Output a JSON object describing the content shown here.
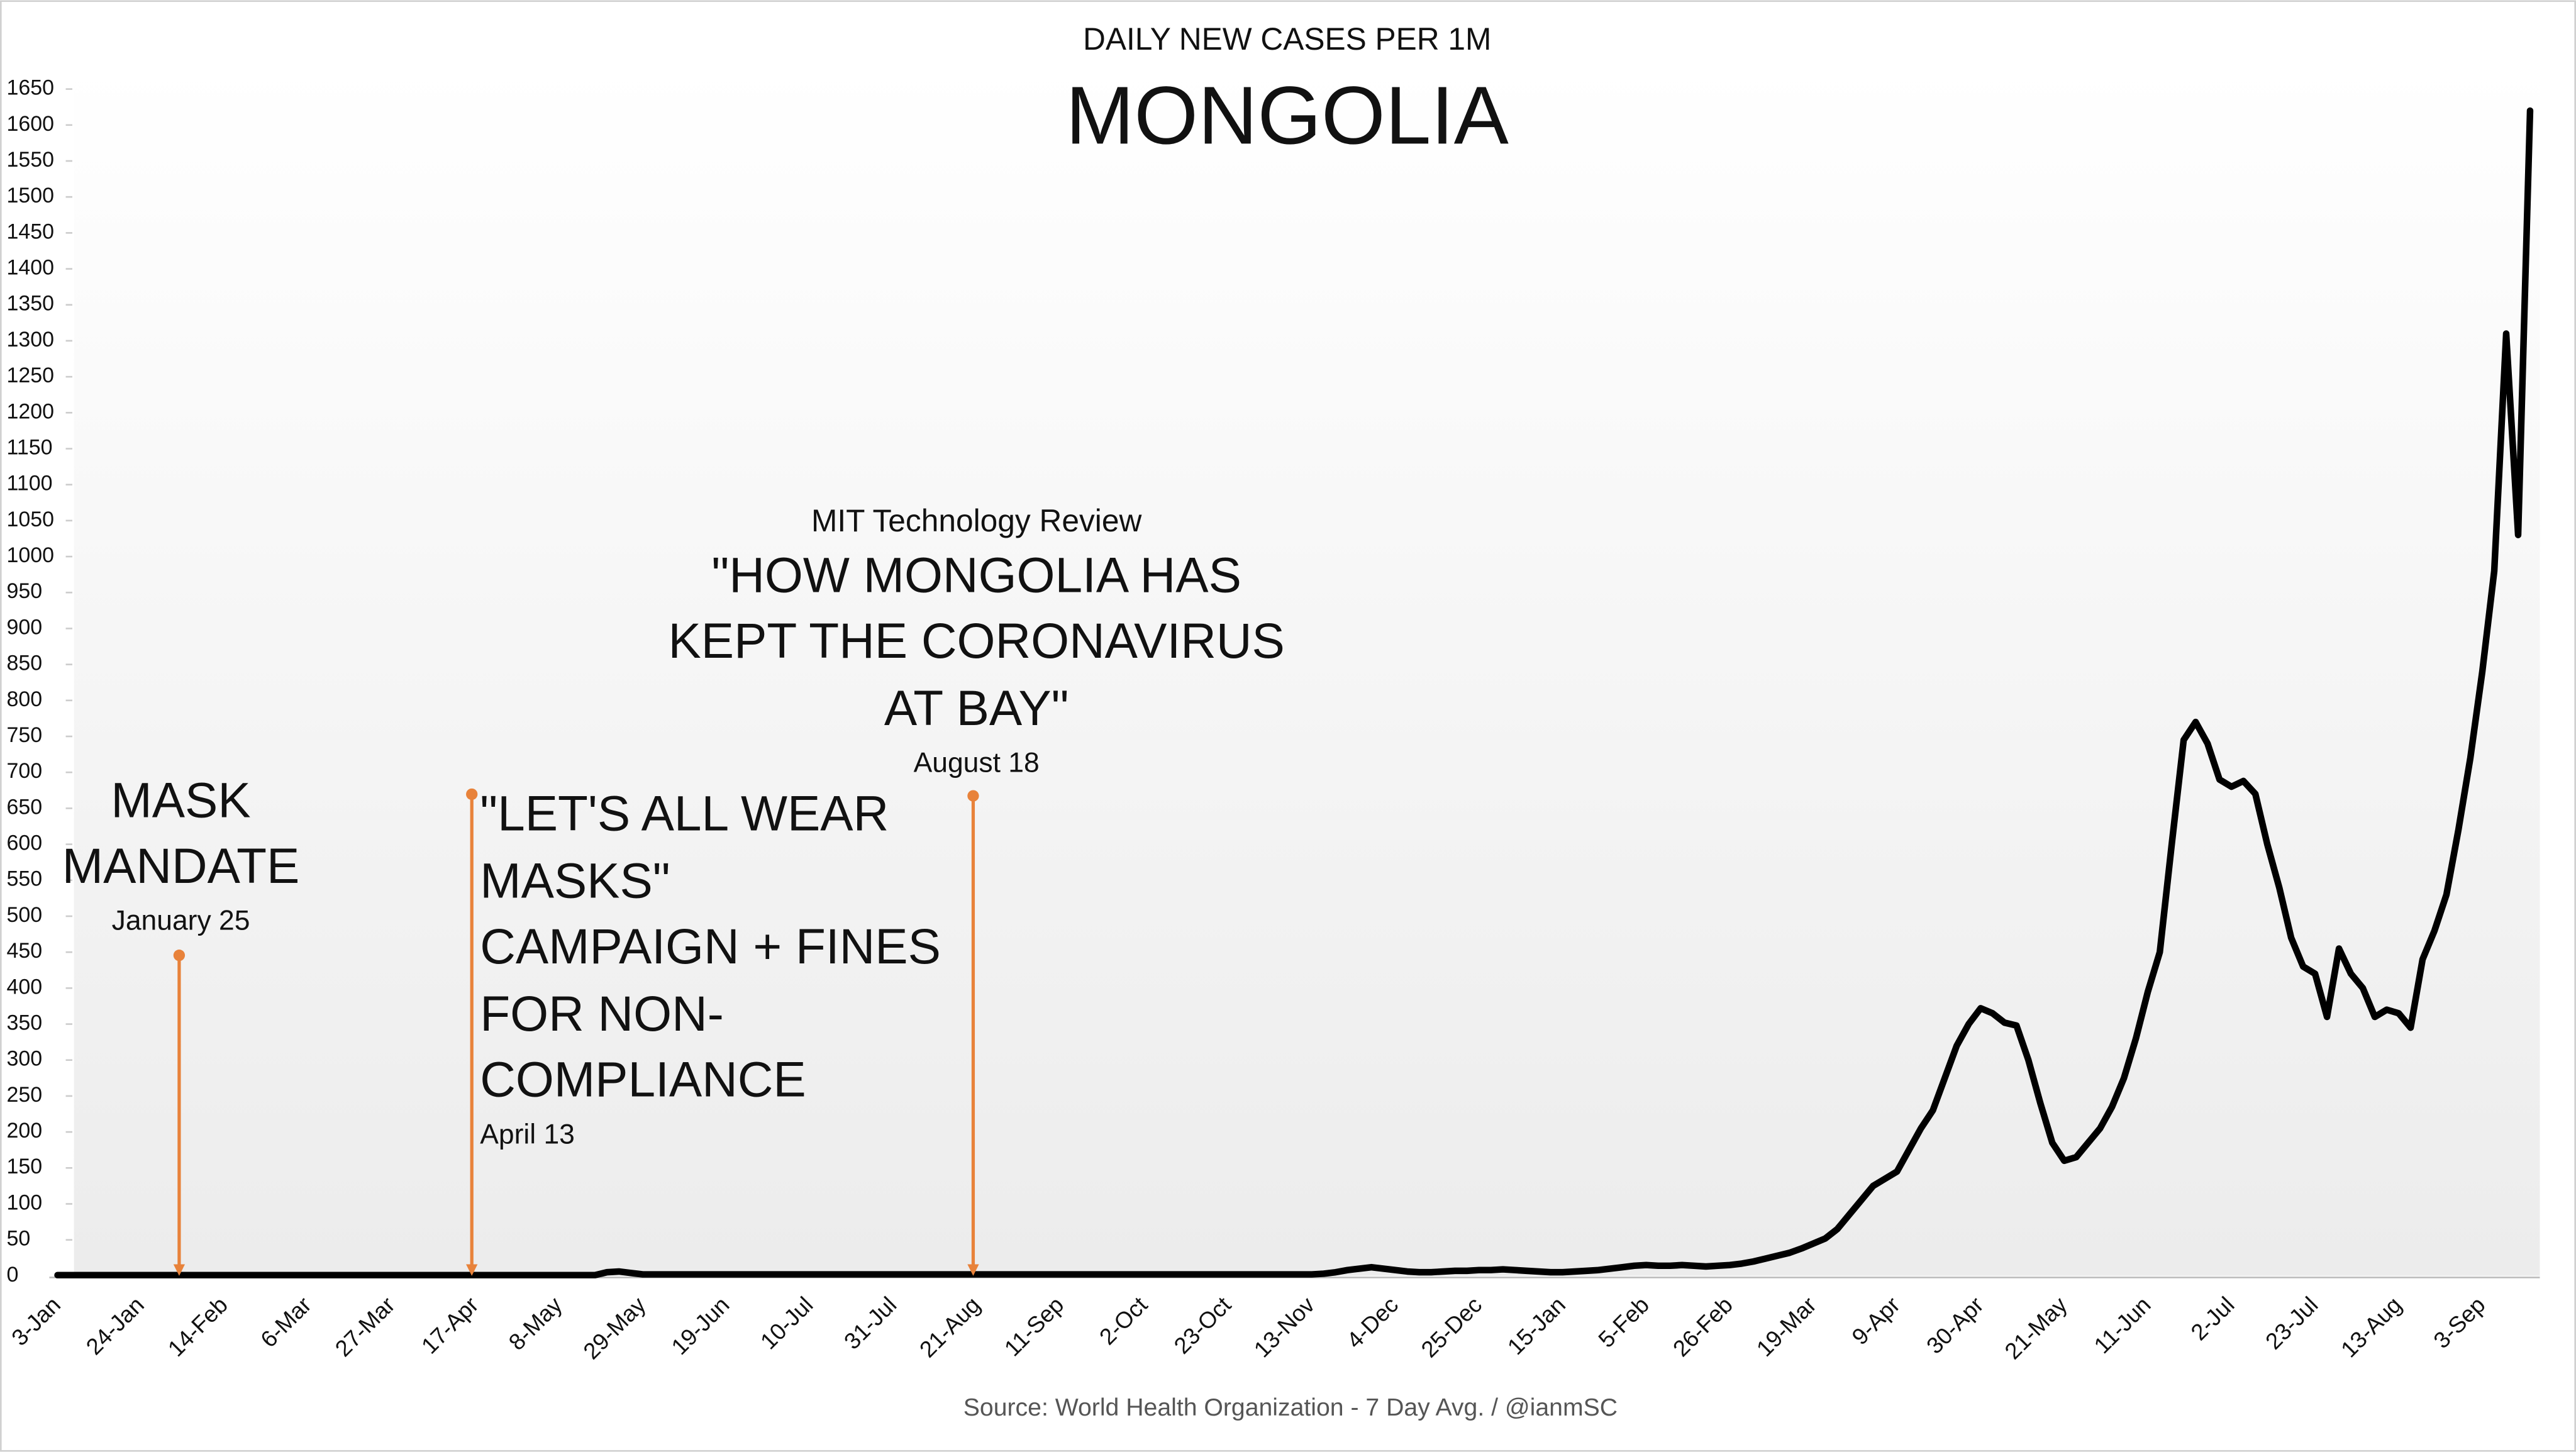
{
  "chart_data": {
    "type": "line",
    "subtitle": "DAILY NEW CASES PER 1M",
    "title": "MONGOLIA",
    "source": "Source: World Health Organization - 7 Day Avg. / @ianmSC",
    "categories": [
      "3-Jan",
      null,
      null,
      null,
      null,
      null,
      null,
      "24-Jan",
      null,
      null,
      null,
      null,
      null,
      null,
      "14-Feb",
      null,
      null,
      null,
      null,
      null,
      null,
      "6-Mar",
      null,
      null,
      null,
      null,
      null,
      null,
      "27-Mar",
      null,
      null,
      null,
      null,
      null,
      null,
      "17-Apr",
      null,
      null,
      null,
      null,
      null,
      null,
      "8-May",
      null,
      null,
      null,
      null,
      null,
      null,
      "29-May",
      null,
      null,
      null,
      null,
      null,
      null,
      "19-Jun",
      null,
      null,
      null,
      null,
      null,
      null,
      "10-Jul",
      null,
      null,
      null,
      null,
      null,
      null,
      "31-Jul",
      null,
      null,
      null,
      null,
      null,
      null,
      "21-Aug",
      null,
      null,
      null,
      null,
      null,
      null,
      "11-Sep",
      null,
      null,
      null,
      null,
      null,
      null,
      "2-Oct",
      null,
      null,
      null,
      null,
      null,
      null,
      "23-Oct",
      null,
      null,
      null,
      null,
      null,
      null,
      "13-Nov",
      null,
      null,
      null,
      null,
      null,
      null,
      "4-Dec",
      null,
      null,
      null,
      null,
      null,
      null,
      "25-Dec",
      null,
      null,
      null,
      null,
      null,
      null,
      "15-Jan",
      null,
      null,
      null,
      null,
      null,
      null,
      "5-Feb",
      null,
      null,
      null,
      null,
      null,
      null,
      "26-Feb",
      null,
      null,
      null,
      null,
      null,
      null,
      "19-Mar",
      null,
      null,
      null,
      null,
      null,
      null,
      "9-Apr",
      null,
      null,
      null,
      null,
      null,
      null,
      "30-Apr",
      null,
      null,
      null,
      null,
      null,
      null,
      "21-May",
      null,
      null,
      null,
      null,
      null,
      null,
      "11-Jun",
      null,
      null,
      null,
      null,
      null,
      null,
      "2-Jul",
      null,
      null,
      null,
      null,
      null,
      null,
      "23-Jul",
      null,
      null,
      null,
      null,
      null,
      null,
      "13-Aug",
      null,
      null,
      null,
      null,
      null,
      null,
      "3-Sep",
      null,
      null,
      null,
      null
    ],
    "series": [
      {
        "name": "Mongolia",
        "color": "#000000",
        "values": [
          1,
          1,
          1,
          1,
          1,
          1,
          1,
          1,
          1,
          1,
          1,
          1,
          1,
          1,
          1,
          1,
          1,
          1,
          1,
          1,
          1,
          1,
          1,
          1,
          1,
          1,
          1,
          1,
          1,
          1,
          1,
          1,
          1,
          1,
          1,
          1,
          1,
          1,
          1,
          1,
          1,
          1,
          1,
          1,
          1,
          1,
          5,
          6,
          4,
          2,
          2,
          2,
          2,
          2,
          2,
          2,
          2,
          2,
          2,
          2,
          2,
          2,
          2,
          2,
          2,
          2,
          2,
          2,
          2,
          2,
          2,
          2,
          2,
          2,
          2,
          2,
          2,
          2,
          2,
          2,
          2,
          2,
          2,
          2,
          2,
          2,
          2,
          2,
          2,
          2,
          2,
          2,
          2,
          2,
          2,
          2,
          2,
          2,
          2,
          2,
          2,
          2,
          2,
          2,
          2,
          2,
          3,
          5,
          8,
          10,
          12,
          10,
          8,
          6,
          5,
          5,
          6,
          7,
          7,
          8,
          8,
          9,
          8,
          7,
          6,
          5,
          5,
          6,
          7,
          8,
          10,
          12,
          14,
          15,
          14,
          14,
          15,
          14,
          13,
          14,
          15,
          17,
          20,
          24,
          28,
          32,
          38,
          45,
          52,
          65,
          85,
          105,
          125,
          135,
          145,
          175,
          205,
          230,
          275,
          320,
          350,
          372,
          365,
          352,
          348,
          300,
          240,
          185,
          160,
          165,
          185,
          205,
          235,
          275,
          330,
          395,
          450,
          600,
          745,
          770,
          740,
          690,
          680,
          688,
          670,
          600,
          540,
          470,
          430,
          420,
          360,
          455,
          420,
          400,
          360,
          370,
          365,
          345,
          440,
          480,
          530,
          620,
          720,
          840,
          980,
          1310,
          1030,
          1620
        ]
      }
    ],
    "ylim": [
      0,
      1650
    ],
    "yticks": [
      0,
      50,
      100,
      150,
      200,
      250,
      300,
      350,
      400,
      450,
      500,
      550,
      600,
      650,
      700,
      750,
      800,
      850,
      900,
      950,
      1000,
      1050,
      1100,
      1150,
      1200,
      1250,
      1300,
      1350,
      1400,
      1450,
      1500,
      1550,
      1600,
      1650
    ],
    "annotations": [
      {
        "lines": [
          "MASK",
          "MANDATE"
        ],
        "date": "January 25"
      },
      {
        "lines": [
          "\"LET'S ALL WEAR",
          "MASKS\"",
          "CAMPAIGN + FINES",
          "FOR NON-",
          "COMPLIANCE"
        ],
        "date": "April 13"
      },
      {
        "source": "MIT Technology Review",
        "lines": [
          "\"HOW MONGOLIA HAS",
          "KEPT THE CORONAVIRUS",
          "AT BAY\""
        ],
        "date": "August 18"
      }
    ]
  }
}
